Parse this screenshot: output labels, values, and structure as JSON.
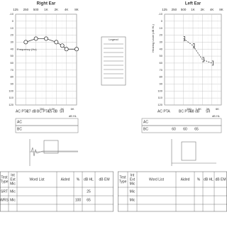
{
  "chart_data": [
    {
      "type": "line",
      "title": "Right Ear",
      "x_label": "Frequency (Hz)",
      "xscale": "log",
      "y_inverted": true,
      "grid": true,
      "xlim": [
        125,
        8000
      ],
      "ylim": [
        -10,
        120
      ],
      "xticks": [
        125,
        250,
        500,
        {
          "value": 1000,
          "label": "1K"
        },
        {
          "value": 2000,
          "label": "2K"
        },
        {
          "value": 4000,
          "label": "4K"
        },
        {
          "value": 8000,
          "label": "8K"
        }
      ],
      "xticks_minor": [
        750,
        {
          "value": 1500,
          "label": "1.5K"
        },
        {
          "value": 3000,
          "label": "3K"
        },
        {
          "value": 6000,
          "label": "6K"
        }
      ],
      "yticks": [
        -10,
        0,
        10,
        20,
        30,
        40,
        50,
        60,
        70,
        80,
        90,
        100,
        110,
        120
      ],
      "x": [
        250,
        500,
        1000,
        2000,
        3000,
        4000,
        8000
      ],
      "series": [
        {
          "color": "#222222",
          "marker": "circle",
          "line_style": "solid",
          "values": [
            30,
            25,
            25,
            30,
            35,
            40,
            40
          ]
        }
      ]
    },
    {
      "type": "line",
      "title": "Left Ear",
      "y_label": "Hearing Level (dB HL)",
      "xscale": "log",
      "y_inverted": true,
      "grid": true,
      "xlim": [
        125,
        8000
      ],
      "ylim": [
        -10,
        120
      ],
      "xticks": [
        125,
        250,
        500,
        {
          "value": 1000,
          "label": "1K"
        },
        {
          "value": 2000,
          "label": "2K"
        },
        {
          "value": 4000,
          "label": "4K"
        },
        {
          "value": 8000,
          "label": "8K"
        }
      ],
      "xticks_minor": [
        750,
        {
          "value": 1500,
          "label": "1.5K"
        },
        {
          "value": 3000,
          "label": "3K"
        },
        {
          "value": 6000,
          "label": "6K"
        }
      ],
      "yticks": [
        -10,
        0,
        10,
        20,
        30,
        40,
        50,
        60,
        70,
        80,
        90,
        100,
        110,
        120
      ],
      "x": [
        500,
        1000,
        2000,
        4000
      ],
      "series": [
        {
          "color": "#222222",
          "marker": "bracket",
          "line_style": "dashed",
          "values": [
            25,
            35,
            55,
            60
          ]
        }
      ]
    }
  ],
  "legend_box": {
    "title": "Legend"
  },
  "pta": [
    [
      {
        "label": "AC PTA",
        "value": "27 dB"
      },
      {
        "label": "BC PTA",
        "value": "25 dB"
      },
      {
        "label": "SII"
      }
    ],
    [
      {
        "label": "AC PTA"
      },
      {
        "label": "BC PTA",
        "value": "38 dB"
      },
      {
        "label": "SII"
      }
    ]
  ],
  "threshold_tables": [
    {
      "unit": "dB HL",
      "rows": [
        {
          "label": "AC"
        },
        {
          "label": "BC"
        }
      ]
    },
    {
      "unit": "dB HL",
      "rows": [
        {
          "label": "AC"
        },
        {
          "label": "BC",
          "values": [
            "60",
            "60",
            "65"
          ]
        }
      ]
    }
  ],
  "speech_tables": [
    {
      "header": [
        [
          "Test",
          "Type"
        ],
        [
          "Int",
          "Ext",
          "Mic"
        ],
        [
          "Word List"
        ],
        [
          "Aided"
        ],
        [
          "%"
        ],
        [
          "dB HL"
        ],
        [
          "dB EM"
        ]
      ],
      "rows": [
        {
          "test": "SRT",
          "mic": "Mic",
          "db_hl": "25"
        },
        {
          "test": "WRS",
          "mic": "Mic",
          "percent": "100",
          "db_hl": "65"
        }
      ]
    },
    {
      "header": [
        [
          "Test",
          "Type"
        ],
        [
          "Int",
          "Ext",
          "Mic"
        ],
        [
          "Word List"
        ],
        [
          "Aided"
        ],
        [
          "%"
        ],
        [
          "dB HL"
        ],
        [
          "dB EM"
        ]
      ],
      "rows": [
        {
          "mic": "Mic"
        },
        {
          "mic": "Mic"
        }
      ]
    }
  ]
}
